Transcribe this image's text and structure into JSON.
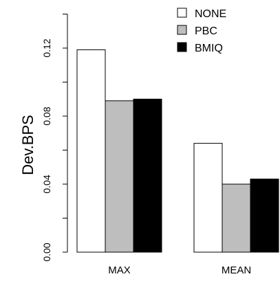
{
  "chart_data": {
    "type": "bar",
    "categories": [
      "MAX",
      "MEAN"
    ],
    "series": [
      {
        "name": "NONE",
        "color": "#ffffff",
        "values": [
          0.119,
          0.064
        ]
      },
      {
        "name": "PBC",
        "color": "#bebebe",
        "values": [
          0.089,
          0.04
        ]
      },
      {
        "name": "BMIQ",
        "color": "#000000",
        "values": [
          0.09,
          0.043
        ]
      }
    ],
    "ylabel": "Dev.BPS",
    "xlabel": "",
    "ylim": [
      0,
      0.14
    ],
    "yticks": [
      0.0,
      0.04,
      0.08,
      0.12
    ],
    "ytick_labels": [
      "0.00",
      "0.04",
      "0.08",
      "0.12"
    ],
    "grid": false,
    "legend_position": "top-right"
  }
}
